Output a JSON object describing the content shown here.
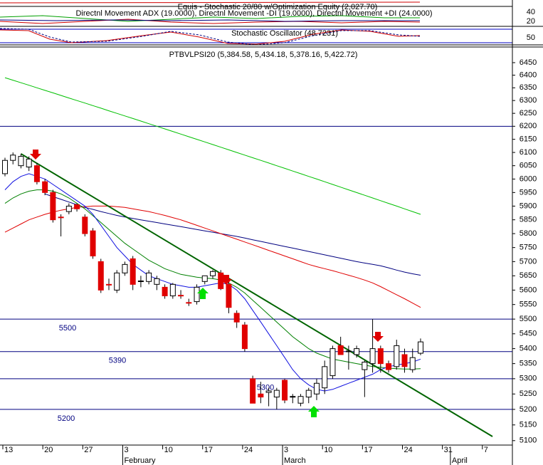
{
  "chart_data": {
    "type": "candlestick",
    "title": "PTBVLPSI20 (5,384.58, 5,434.18, 5,378.16, 5,422.72)",
    "equity_title": "Equis - Stochastic 20/80  w/Optimization Equity (2,027.70)",
    "dmi_title": "Directnl Movement ADX (19.0000), Directnl Movement -DI (19.0000), Directnl Movement +DI (24.0000)",
    "dmi_levels": [
      40,
      20
    ],
    "stochastic_title": "Stochastic Oscillator (48.7231)",
    "stochastic_levels": [
      50
    ],
    "categories": [
      "13",
      null,
      null,
      null,
      null,
      "20",
      null,
      null,
      null,
      null,
      "27",
      null,
      null,
      null,
      null,
      "3",
      null,
      null,
      null,
      null,
      "10",
      null,
      null,
      null,
      null,
      "17",
      null,
      null,
      null,
      null,
      "24",
      null,
      null,
      null,
      null,
      "3",
      null,
      null,
      null,
      null,
      "10",
      null,
      null,
      null,
      null,
      "17",
      null,
      null,
      null,
      null,
      "24",
      null,
      null,
      null,
      null,
      "31",
      null,
      null,
      null,
      null,
      "7",
      null
    ],
    "months": [
      null,
      null,
      null,
      null,
      null,
      null,
      null,
      null,
      null,
      null,
      null,
      null,
      null,
      null,
      null,
      "February",
      null,
      null,
      null,
      null,
      null,
      null,
      null,
      null,
      null,
      null,
      null,
      null,
      null,
      null,
      null,
      null,
      null,
      null,
      null,
      "March",
      null,
      null,
      null,
      null,
      null,
      null,
      null,
      null,
      null,
      null,
      null,
      null,
      null,
      null,
      null,
      null,
      null,
      null,
      null,
      null,
      "April",
      null,
      null,
      null,
      null,
      null
    ],
    "open": [
      6020,
      6070,
      6050,
      6045,
      6050,
      5990,
      5950,
      5860,
      5880,
      5905,
      5860,
      5810,
      5700,
      5620,
      5600,
      5660,
      5710,
      5630,
      5630,
      5620,
      5610,
      5580,
      5582,
      5557,
      5560,
      5630,
      5650,
      5660,
      5620,
      5520,
      5480,
      5300,
      5250,
      5255,
      5240,
      5295,
      5240,
      5220,
      5240,
      5250,
      5270,
      5310,
      5410,
      5390,
      5380,
      5330,
      5350,
      5400,
      5350,
      5340,
      5380,
      5330,
      5384.58,
      null,
      null,
      null,
      null,
      null,
      null,
      null,
      null,
      null
    ],
    "high": [
      6080,
      6100,
      6095,
      6085,
      6060,
      6000,
      5960,
      5870,
      5910,
      5910,
      5870,
      5820,
      5710,
      5640,
      5670,
      5700,
      5720,
      5650,
      5670,
      5650,
      5620,
      5625,
      5600,
      5570,
      5620,
      5650,
      5670,
      5670,
      5630,
      5530,
      5490,
      5310,
      5290,
      5270,
      5270,
      5300,
      5250,
      5250,
      5270,
      5300,
      5360,
      5410,
      5440,
      5410,
      5410,
      5360,
      5500,
      5410,
      5360,
      5430,
      5400,
      5400,
      5434.18,
      null,
      null,
      null,
      null,
      null,
      null,
      null,
      null,
      null
    ],
    "low": [
      6010,
      6055,
      6040,
      6030,
      5980,
      5940,
      5840,
      5790,
      5870,
      5880,
      5790,
      5710,
      5590,
      5600,
      5590,
      5650,
      5600,
      5610,
      5620,
      5600,
      5570,
      5570,
      5570,
      5545,
      5550,
      5620,
      5640,
      5600,
      5520,
      5470,
      5390,
      5220,
      5220,
      5210,
      5200,
      5220,
      5220,
      5210,
      5220,
      5230,
      5250,
      5300,
      5380,
      5330,
      5370,
      5240,
      5320,
      5320,
      5320,
      5330,
      5320,
      5320,
      5378.16,
      null,
      null,
      null,
      null,
      null,
      null,
      null,
      null,
      null
    ],
    "close": [
      6070,
      6090,
      6085,
      6075,
      5990,
      5950,
      5850,
      5858,
      5900,
      5890,
      5800,
      5720,
      5600,
      5618,
      5660,
      5690,
      5620,
      5632,
      5660,
      5640,
      5580,
      5620,
      5580,
      5555,
      5610,
      5650,
      5665,
      5605,
      5540,
      5490,
      5400,
      5220,
      5240,
      5260,
      5262,
      5230,
      5242,
      5242,
      5262,
      5285,
      5340,
      5400,
      5380,
      5392,
      5400,
      5355,
      5400,
      5350,
      5330,
      5410,
      5340,
      5370,
      5422.72,
      null,
      null,
      null,
      null,
      null,
      null,
      null,
      null,
      null
    ],
    "moving_averages": [
      {
        "color": "#00c000",
        "values": [
          6390,
          6380,
          6370,
          6360,
          6350,
          6340,
          6330,
          6320,
          6310,
          6300,
          6290,
          6280,
          6270,
          6260,
          6250,
          6240,
          6230,
          6220,
          6210,
          6200,
          6190,
          6180,
          6170,
          6160,
          6150,
          6140,
          6130,
          6120,
          6110,
          6100,
          6090,
          6080,
          6070,
          6060,
          6050,
          6040,
          6030,
          6020,
          6010,
          6000,
          5990,
          5980,
          5970,
          5960,
          5950,
          5940,
          5930,
          5920,
          5910,
          5900,
          5890,
          5880,
          5870,
          null,
          null,
          null,
          null,
          null,
          null,
          null,
          null,
          null
        ]
      },
      {
        "color": "#000080",
        "values": [
          null,
          null,
          null,
          null,
          null,
          5945,
          5935,
          5925,
          5915,
          5905,
          5895,
          5888,
          5880,
          5873,
          5866,
          5860,
          5855,
          5850,
          5845,
          5840,
          5835,
          5830,
          5825,
          5820,
          5815,
          5810,
          5805,
          5800,
          5795,
          5790,
          5784,
          5778,
          5772,
          5766,
          5760,
          5754,
          5748,
          5742,
          5736,
          5730,
          5724,
          5718,
          5712,
          5706,
          5700,
          5695,
          5690,
          5685,
          5678,
          5670,
          5663,
          5657,
          5652,
          null,
          null,
          null,
          null,
          null,
          null,
          null,
          null,
          null
        ]
      },
      {
        "color": "#e00000",
        "values": [
          5805,
          5820,
          5835,
          5850,
          5860,
          5870,
          5878,
          5885,
          5890,
          5895,
          5898,
          5900,
          5900,
          5900,
          5898,
          5895,
          5890,
          5885,
          5880,
          5873,
          5866,
          5858,
          5850,
          5840,
          5830,
          5820,
          5810,
          5800,
          5790,
          5780,
          5770,
          5760,
          5750,
          5740,
          5730,
          5720,
          5710,
          5700,
          5690,
          5682,
          5675,
          5668,
          5660,
          5652,
          5644,
          5635,
          5625,
          5612,
          5598,
          5584,
          5570,
          5555,
          5540,
          null,
          null,
          null,
          null,
          null,
          null,
          null,
          null,
          null
        ]
      },
      {
        "color": "#008000",
        "values": [
          5910,
          5930,
          5945,
          5955,
          5960,
          5960,
          5955,
          5945,
          5930,
          5910,
          5890,
          5865,
          5840,
          5815,
          5790,
          5765,
          5745,
          5725,
          5705,
          5690,
          5675,
          5665,
          5655,
          5650,
          5645,
          5642,
          5640,
          5635,
          5625,
          5610,
          5590,
          5565,
          5540,
          5515,
          5490,
          5465,
          5440,
          5420,
          5400,
          5385,
          5375,
          5365,
          5360,
          5355,
          5350,
          5345,
          5340,
          5338,
          5335,
          5333,
          5332,
          5332,
          5333,
          null,
          null,
          null,
          null,
          null,
          null,
          null,
          null,
          null
        ]
      },
      {
        "color": "#1010e0",
        "values": [
          5960,
          5990,
          6010,
          6020,
          6010,
          6000,
          5980,
          5960,
          5940,
          5920,
          5900,
          5870,
          5830,
          5790,
          5750,
          5720,
          5690,
          5670,
          5650,
          5640,
          5630,
          5620,
          5615,
          5610,
          5610,
          5615,
          5620,
          5625,
          5620,
          5600,
          5570,
          5530,
          5490,
          5450,
          5410,
          5370,
          5330,
          5300,
          5280,
          5265,
          5260,
          5265,
          5275,
          5285,
          5295,
          5305,
          5315,
          5330,
          5340,
          5345,
          5350,
          5355,
          5365,
          null,
          null,
          null,
          null,
          null,
          null,
          null,
          null,
          null
        ]
      }
    ],
    "trendline": {
      "color": "#006400",
      "values": [
        6095,
        5113
      ]
    },
    "hlines": [
      6200,
      5500,
      5390,
      5300,
      5200
    ],
    "ylim": [
      5086,
      6513
    ],
    "log_scale": true,
    "yticks": [
      5100,
      5150,
      5200,
      5250,
      5300,
      5350,
      5400,
      5450,
      5500,
      5550,
      5600,
      5650,
      5700,
      5750,
      5800,
      5850,
      5900,
      5950,
      6000,
      6050,
      6100,
      6150,
      6200,
      6250,
      6300,
      6350,
      6400,
      6450
    ],
    "up_color": "#ffffff",
    "down_color": "#e00000"
  }
}
